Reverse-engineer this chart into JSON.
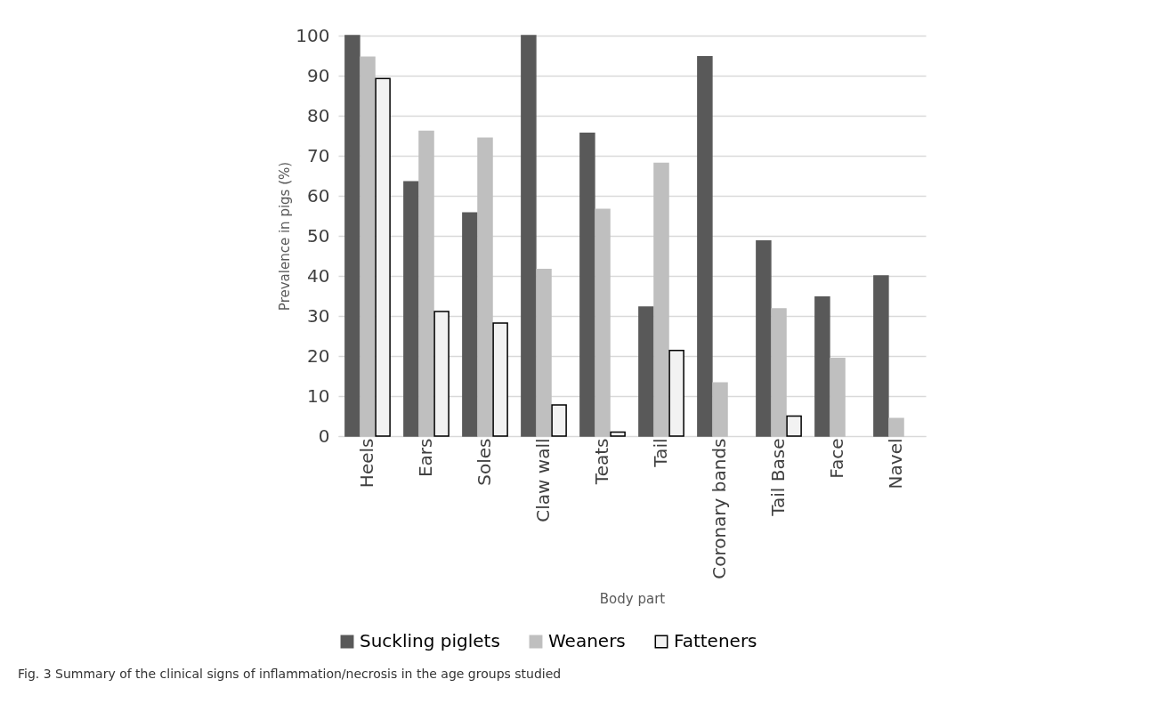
{
  "chart_data": {
    "type": "bar",
    "xlabel": "Body part",
    "ylabel": "Prevalence in pigs (%)",
    "categories": [
      "Heels",
      "Ears",
      "Soles",
      "Claw wall",
      "Teats",
      "Tail",
      "Coronary bands",
      "Tail Base",
      "Face",
      "Navel"
    ],
    "series": [
      {
        "name": "Suckling piglets",
        "color": "#595959",
        "values": [
          100,
          63.5,
          55.7,
          100,
          75.6,
          32.2,
          94.7,
          48.7,
          34.7,
          40.0
        ]
      },
      {
        "name": "Weaners",
        "color": "#bfbfbf",
        "values": [
          94.6,
          76.1,
          74.4,
          41.6,
          56.6,
          68.1,
          13.3,
          31.8,
          19.4,
          4.4
        ]
      },
      {
        "name": "Fatteners",
        "color": "#f2f2f2",
        "values": [
          89.3,
          31.1,
          28.2,
          7.8,
          1.0,
          21.4,
          null,
          5.0,
          null,
          null
        ]
      }
    ],
    "ylim": [
      0,
      100
    ],
    "yticks": [
      0,
      10,
      20,
      30,
      40,
      50,
      60,
      70,
      80,
      90,
      100
    ],
    "grid": "y",
    "legend": "bottom",
    "annotations": [
      "Fig. 3 Summary of the clinical signs of inflammation/necrosis in the age groups studied"
    ]
  }
}
